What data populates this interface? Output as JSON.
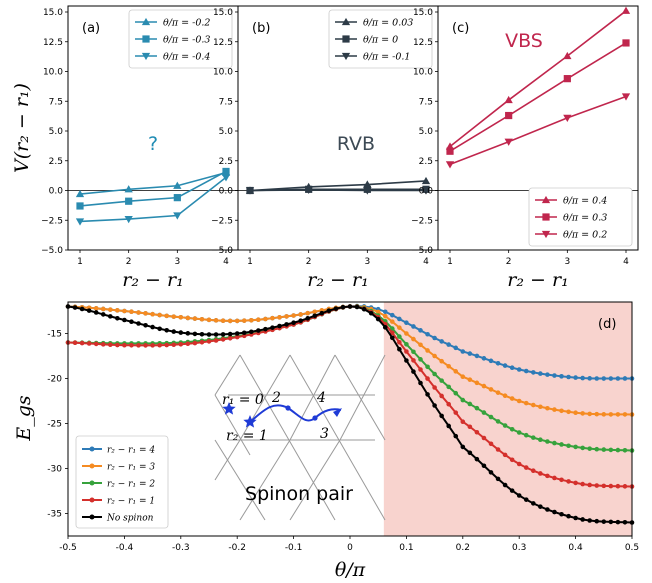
{
  "chart_data": [
    {
      "type": "line",
      "panel_label": "(a)",
      "ylabel": "V(r₂ − r₁)",
      "xlabel": "r₂ − r₁",
      "annotation": {
        "text": "?",
        "color": "#1f8cb4"
      },
      "x": [
        1,
        2,
        3,
        4
      ],
      "xticks": [
        "1",
        "2",
        "3",
        "4"
      ],
      "ylim": [
        -5.0,
        15.0
      ],
      "yticks": [
        "−5.0",
        "−2.5",
        "0.0",
        "2.5",
        "5.0",
        "7.5",
        "10.0",
        "12.5",
        "15.0"
      ],
      "legend_position": "top-right",
      "color": "#2a8bb0",
      "series": [
        {
          "name": "θ/π = -0.2",
          "marker": "triangle-up",
          "values": [
            -0.3,
            0.1,
            0.4,
            1.5
          ]
        },
        {
          "name": "θ/π = -0.3",
          "marker": "square",
          "values": [
            -1.3,
            -0.9,
            -0.6,
            1.6
          ]
        },
        {
          "name": "θ/π = -0.4",
          "marker": "triangle-down",
          "values": [
            -2.6,
            -2.4,
            -2.1,
            1.1
          ]
        }
      ]
    },
    {
      "type": "line",
      "panel_label": "(b)",
      "xlabel": "r₂ − r₁",
      "annotation": {
        "text": "RVB",
        "color": "#3d4a55"
      },
      "x": [
        1,
        2,
        3,
        4
      ],
      "xticks": [
        "1",
        "2",
        "3",
        "4"
      ],
      "ylim": [
        -5.0,
        15.0
      ],
      "yticks": [
        "−5.0",
        "−2.5",
        "0.0",
        "2.5",
        "5.0",
        "7.5",
        "10.0",
        "12.5",
        "15.0"
      ],
      "legend_position": "top-right",
      "color": "#2d3b47",
      "series": [
        {
          "name": "θ/π = 0.03",
          "marker": "triangle-up",
          "values": [
            0.0,
            0.3,
            0.5,
            0.8
          ]
        },
        {
          "name": "θ/π = 0",
          "marker": "square",
          "values": [
            0.0,
            0.1,
            0.1,
            0.1
          ]
        },
        {
          "name": "θ/π = -0.1",
          "marker": "triangle-down",
          "values": [
            0.0,
            0.05,
            0.0,
            0.0
          ]
        }
      ]
    },
    {
      "type": "line",
      "panel_label": "(c)",
      "xlabel": "r₂ − r₁",
      "annotation": {
        "text": "VBS",
        "color": "#c0264d"
      },
      "x": [
        1,
        2,
        3,
        4
      ],
      "xticks": [
        "1",
        "2",
        "3",
        "4"
      ],
      "ylim": [
        -5.0,
        15.0
      ],
      "yticks": [
        "−5.0",
        "−2.5",
        "0.0",
        "2.5",
        "5.0",
        "7.5",
        "10.0",
        "12.5",
        "15.0"
      ],
      "legend_position": "bottom-right",
      "color": "#c0264d",
      "series": [
        {
          "name": "θ/π = 0.4",
          "marker": "triangle-up",
          "values": [
            3.7,
            7.6,
            11.3,
            15.1
          ]
        },
        {
          "name": "θ/π = 0.3",
          "marker": "square",
          "values": [
            3.3,
            6.3,
            9.4,
            12.4
          ]
        },
        {
          "name": "θ/π = 0.2",
          "marker": "triangle-down",
          "values": [
            2.2,
            4.1,
            6.1,
            7.9
          ]
        }
      ]
    },
    {
      "type": "line",
      "panel_label": "(d)",
      "ylabel": "E_gs",
      "xlabel": "θ/π",
      "xlim": [
        -0.5,
        0.5
      ],
      "ylim": [
        -37.5,
        -11.5
      ],
      "xticks": [
        "-0.5",
        "-0.4",
        "-0.3",
        "-0.2",
        "-0.1",
        "0",
        "0.1",
        "0.2",
        "0.3",
        "0.4",
        "0.5"
      ],
      "yticks": [
        "-15",
        "-20",
        "-25",
        "-30",
        "-35"
      ],
      "shaded_region": {
        "from": 0.06,
        "to": 0.5,
        "color": "#f8d3ce"
      },
      "legend_position": "bottom-left",
      "inset": {
        "title": "Spinon pair",
        "labels": [
          "r₁ = 0",
          "2",
          "4",
          "r₂ = 1",
          "3"
        ]
      },
      "series": [
        {
          "name": "r₂ − r₁ = 4",
          "color": "#2e7bb7",
          "x": [
            -0.5,
            -0.4,
            -0.3,
            -0.2,
            -0.1,
            0.0,
            0.05,
            0.1,
            0.15,
            0.2,
            0.3,
            0.4,
            0.5
          ],
          "values": [
            -12.0,
            -12.5,
            -13.2,
            -13.6,
            -13.0,
            -12.0,
            -12.3,
            -13.8,
            -15.5,
            -17.0,
            -19.0,
            -19.9,
            -20.0
          ]
        },
        {
          "name": "r₂ − r₁ = 3",
          "color": "#f58b22",
          "x": [
            -0.5,
            -0.4,
            -0.3,
            -0.2,
            -0.1,
            0.0,
            0.05,
            0.1,
            0.15,
            0.2,
            0.3,
            0.4,
            0.5
          ],
          "values": [
            -12.0,
            -12.5,
            -13.2,
            -13.6,
            -13.0,
            -12.0,
            -12.6,
            -15.0,
            -17.5,
            -19.8,
            -22.5,
            -23.8,
            -24.0
          ]
        },
        {
          "name": "r₂ − r₁ = 2",
          "color": "#36a23c",
          "x": [
            -0.5,
            -0.4,
            -0.3,
            -0.2,
            -0.1,
            0.0,
            0.05,
            0.1,
            0.15,
            0.2,
            0.3,
            0.4,
            0.5
          ],
          "values": [
            -16.0,
            -16.1,
            -16.0,
            -15.3,
            -14.0,
            -12.0,
            -13.0,
            -16.2,
            -19.5,
            -22.4,
            -26.0,
            -27.6,
            -28.0
          ]
        },
        {
          "name": "r₂ − r₁ = 1",
          "color": "#d4302c",
          "x": [
            -0.5,
            -0.4,
            -0.3,
            -0.2,
            -0.1,
            0.0,
            0.05,
            0.1,
            0.15,
            0.2,
            0.3,
            0.4,
            0.5
          ],
          "values": [
            -16.0,
            -16.3,
            -16.2,
            -15.4,
            -14.0,
            -12.0,
            -13.2,
            -17.0,
            -21.0,
            -24.8,
            -29.5,
            -31.6,
            -32.0
          ]
        },
        {
          "name": "No spinon",
          "color": "#000000",
          "x": [
            -0.5,
            -0.4,
            -0.3,
            -0.2,
            -0.1,
            0.0,
            0.05,
            0.1,
            0.15,
            0.2,
            0.3,
            0.4,
            0.5
          ],
          "values": [
            -12.0,
            -13.5,
            -14.9,
            -15.0,
            -13.8,
            -12.0,
            -13.4,
            -18.0,
            -23.0,
            -27.6,
            -33.0,
            -35.5,
            -36.0
          ]
        }
      ]
    }
  ]
}
